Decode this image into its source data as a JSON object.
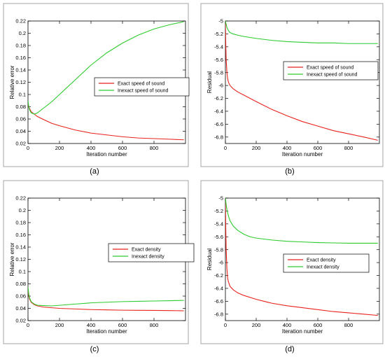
{
  "chart_data": [
    {
      "type": "line",
      "panel_label": "(a)",
      "xlabel": "Iteration number",
      "ylabel": "Relative error",
      "xlim": [
        0,
        1000
      ],
      "ylim": [
        0.02,
        0.22
      ],
      "xticks": [
        0,
        200,
        400,
        600,
        800
      ],
      "yticks": [
        0.02,
        0.04,
        0.06,
        0.08,
        0.1,
        0.12,
        0.14,
        0.16,
        0.18,
        0.2,
        0.22
      ],
      "ytick_labels": [
        "0.02",
        "0.04",
        "0.06",
        "0.08",
        "0.1",
        "0.12",
        "0.14",
        "0.16",
        "0.18",
        "0.2",
        "0.22"
      ],
      "grid": false,
      "legend_position": "center-right",
      "series": [
        {
          "name": "Exact speed of sound",
          "color": "#e8231e",
          "x": [
            0,
            5,
            10,
            20,
            40,
            60,
            100,
            150,
            200,
            300,
            400,
            500,
            600,
            700,
            800,
            900,
            990
          ],
          "y": [
            0.085,
            0.08,
            0.077,
            0.072,
            0.068,
            0.064,
            0.059,
            0.053,
            0.049,
            0.042,
            0.037,
            0.034,
            0.031,
            0.029,
            0.028,
            0.027,
            0.026
          ]
        },
        {
          "name": "Inexact speed of sound",
          "color": "#2ecb2e",
          "x": [
            0,
            5,
            10,
            20,
            40,
            60,
            100,
            150,
            200,
            300,
            400,
            500,
            600,
            700,
            800,
            900,
            990
          ],
          "y": [
            0.09,
            0.08,
            0.075,
            0.07,
            0.068,
            0.07,
            0.078,
            0.088,
            0.1,
            0.124,
            0.148,
            0.168,
            0.184,
            0.197,
            0.207,
            0.214,
            0.219
          ]
        }
      ]
    },
    {
      "type": "line",
      "panel_label": "(b)",
      "xlabel": "Iteration number",
      "ylabel": "Residual",
      "xlim": [
        0,
        1000
      ],
      "ylim": [
        -6.9,
        -5.0
      ],
      "xticks": [
        0,
        200,
        400,
        600,
        800
      ],
      "yticks": [
        -6.8,
        -6.6,
        -6.4,
        -6.2,
        -6.0,
        -5.8,
        -5.6,
        -5.4,
        -5.2,
        -5.0
      ],
      "ytick_labels": [
        "-6.8",
        "-6.6",
        "-6.4",
        "-6.2",
        "-6",
        "-5.8",
        "-5.6",
        "-5.4",
        "-5.2",
        "-5"
      ],
      "grid": false,
      "legend_position": "top-right",
      "series": [
        {
          "name": "Exact speed of sound",
          "color": "#e8231e",
          "x": [
            0,
            2,
            5,
            10,
            15,
            20,
            30,
            50,
            80,
            120,
            200,
            300,
            400,
            500,
            600,
            700,
            800,
            900,
            990
          ],
          "y": [
            -5.0,
            -5.3,
            -5.6,
            -5.8,
            -5.9,
            -5.95,
            -6.0,
            -6.05,
            -6.1,
            -6.15,
            -6.25,
            -6.37,
            -6.47,
            -6.56,
            -6.63,
            -6.7,
            -6.75,
            -6.8,
            -6.85
          ]
        },
        {
          "name": "Inexact speed of sound",
          "color": "#2ecb2e",
          "x": [
            0,
            5,
            10,
            20,
            30,
            50,
            80,
            120,
            200,
            300,
            400,
            500,
            600,
            700,
            800,
            900,
            990
          ],
          "y": [
            -5.0,
            -5.05,
            -5.1,
            -5.15,
            -5.18,
            -5.2,
            -5.22,
            -5.24,
            -5.27,
            -5.3,
            -5.32,
            -5.33,
            -5.34,
            -5.34,
            -5.35,
            -5.35,
            -5.35
          ]
        }
      ]
    },
    {
      "type": "line",
      "panel_label": "(c)",
      "xlabel": "Iteration number",
      "ylabel": "Relative error",
      "xlim": [
        0,
        1000
      ],
      "ylim": [
        0.02,
        0.22
      ],
      "xticks": [
        0,
        200,
        400,
        600,
        800
      ],
      "yticks": [
        0.02,
        0.04,
        0.06,
        0.08,
        0.1,
        0.12,
        0.14,
        0.16,
        0.18,
        0.2,
        0.22
      ],
      "ytick_labels": [
        "0.02",
        "0.04",
        "0.06",
        "0.08",
        "0.1",
        "0.12",
        "0.14",
        "0.16",
        "0.18",
        "0.2",
        "0.22"
      ],
      "grid": false,
      "legend_position": "center-right",
      "series": [
        {
          "name": "Exact density",
          "color": "#e8231e",
          "x": [
            0,
            5,
            10,
            20,
            40,
            60,
            100,
            150,
            200,
            300,
            400,
            500,
            600,
            700,
            800,
            900,
            990
          ],
          "y": [
            0.07,
            0.06,
            0.055,
            0.05,
            0.046,
            0.044,
            0.042,
            0.041,
            0.04,
            0.039,
            0.038,
            0.0375,
            0.037,
            0.0368,
            0.0366,
            0.0364,
            0.036
          ]
        },
        {
          "name": "Inexact density",
          "color": "#2ecb2e",
          "x": [
            0,
            5,
            10,
            20,
            40,
            60,
            100,
            150,
            200,
            300,
            400,
            500,
            600,
            700,
            800,
            900,
            990
          ],
          "y": [
            0.075,
            0.063,
            0.057,
            0.051,
            0.047,
            0.045,
            0.0445,
            0.044,
            0.045,
            0.047,
            0.049,
            0.05,
            0.051,
            0.0515,
            0.052,
            0.0525,
            0.053
          ]
        }
      ]
    },
    {
      "type": "line",
      "panel_label": "(d)",
      "xlabel": "Iteration number",
      "ylabel": "Residual",
      "xlim": [
        0,
        1000
      ],
      "ylim": [
        -6.9,
        -5.0
      ],
      "xticks": [
        0,
        200,
        400,
        600,
        800
      ],
      "yticks": [
        -6.8,
        -6.6,
        -6.4,
        -6.2,
        -6.0,
        -5.8,
        -5.6,
        -5.4,
        -5.2,
        -5.0
      ],
      "ytick_labels": [
        "-6.8",
        "-6.6",
        "-6.4",
        "-6.2",
        "-6",
        "-5.8",
        "-5.6",
        "-5.4",
        "-5.2",
        "-5"
      ],
      "grid": false,
      "legend_position": "center-right",
      "series": [
        {
          "name": "Exact density",
          "color": "#e8231e",
          "x": [
            0,
            2,
            5,
            10,
            15,
            20,
            30,
            50,
            80,
            120,
            200,
            300,
            400,
            500,
            600,
            700,
            800,
            900,
            990
          ],
          "y": [
            -5.0,
            -5.4,
            -5.8,
            -6.1,
            -6.25,
            -6.3,
            -6.37,
            -6.42,
            -6.47,
            -6.51,
            -6.57,
            -6.63,
            -6.67,
            -6.7,
            -6.73,
            -6.76,
            -6.78,
            -6.8,
            -6.82
          ]
        },
        {
          "name": "Inexact density",
          "color": "#2ecb2e",
          "x": [
            0,
            5,
            10,
            20,
            30,
            50,
            80,
            120,
            160,
            200,
            300,
            400,
            500,
            600,
            700,
            800,
            900,
            990
          ],
          "y": [
            -5.0,
            -5.1,
            -5.18,
            -5.28,
            -5.35,
            -5.43,
            -5.5,
            -5.56,
            -5.6,
            -5.62,
            -5.65,
            -5.67,
            -5.68,
            -5.69,
            -5.695,
            -5.7,
            -5.7,
            -5.7
          ]
        }
      ]
    }
  ]
}
